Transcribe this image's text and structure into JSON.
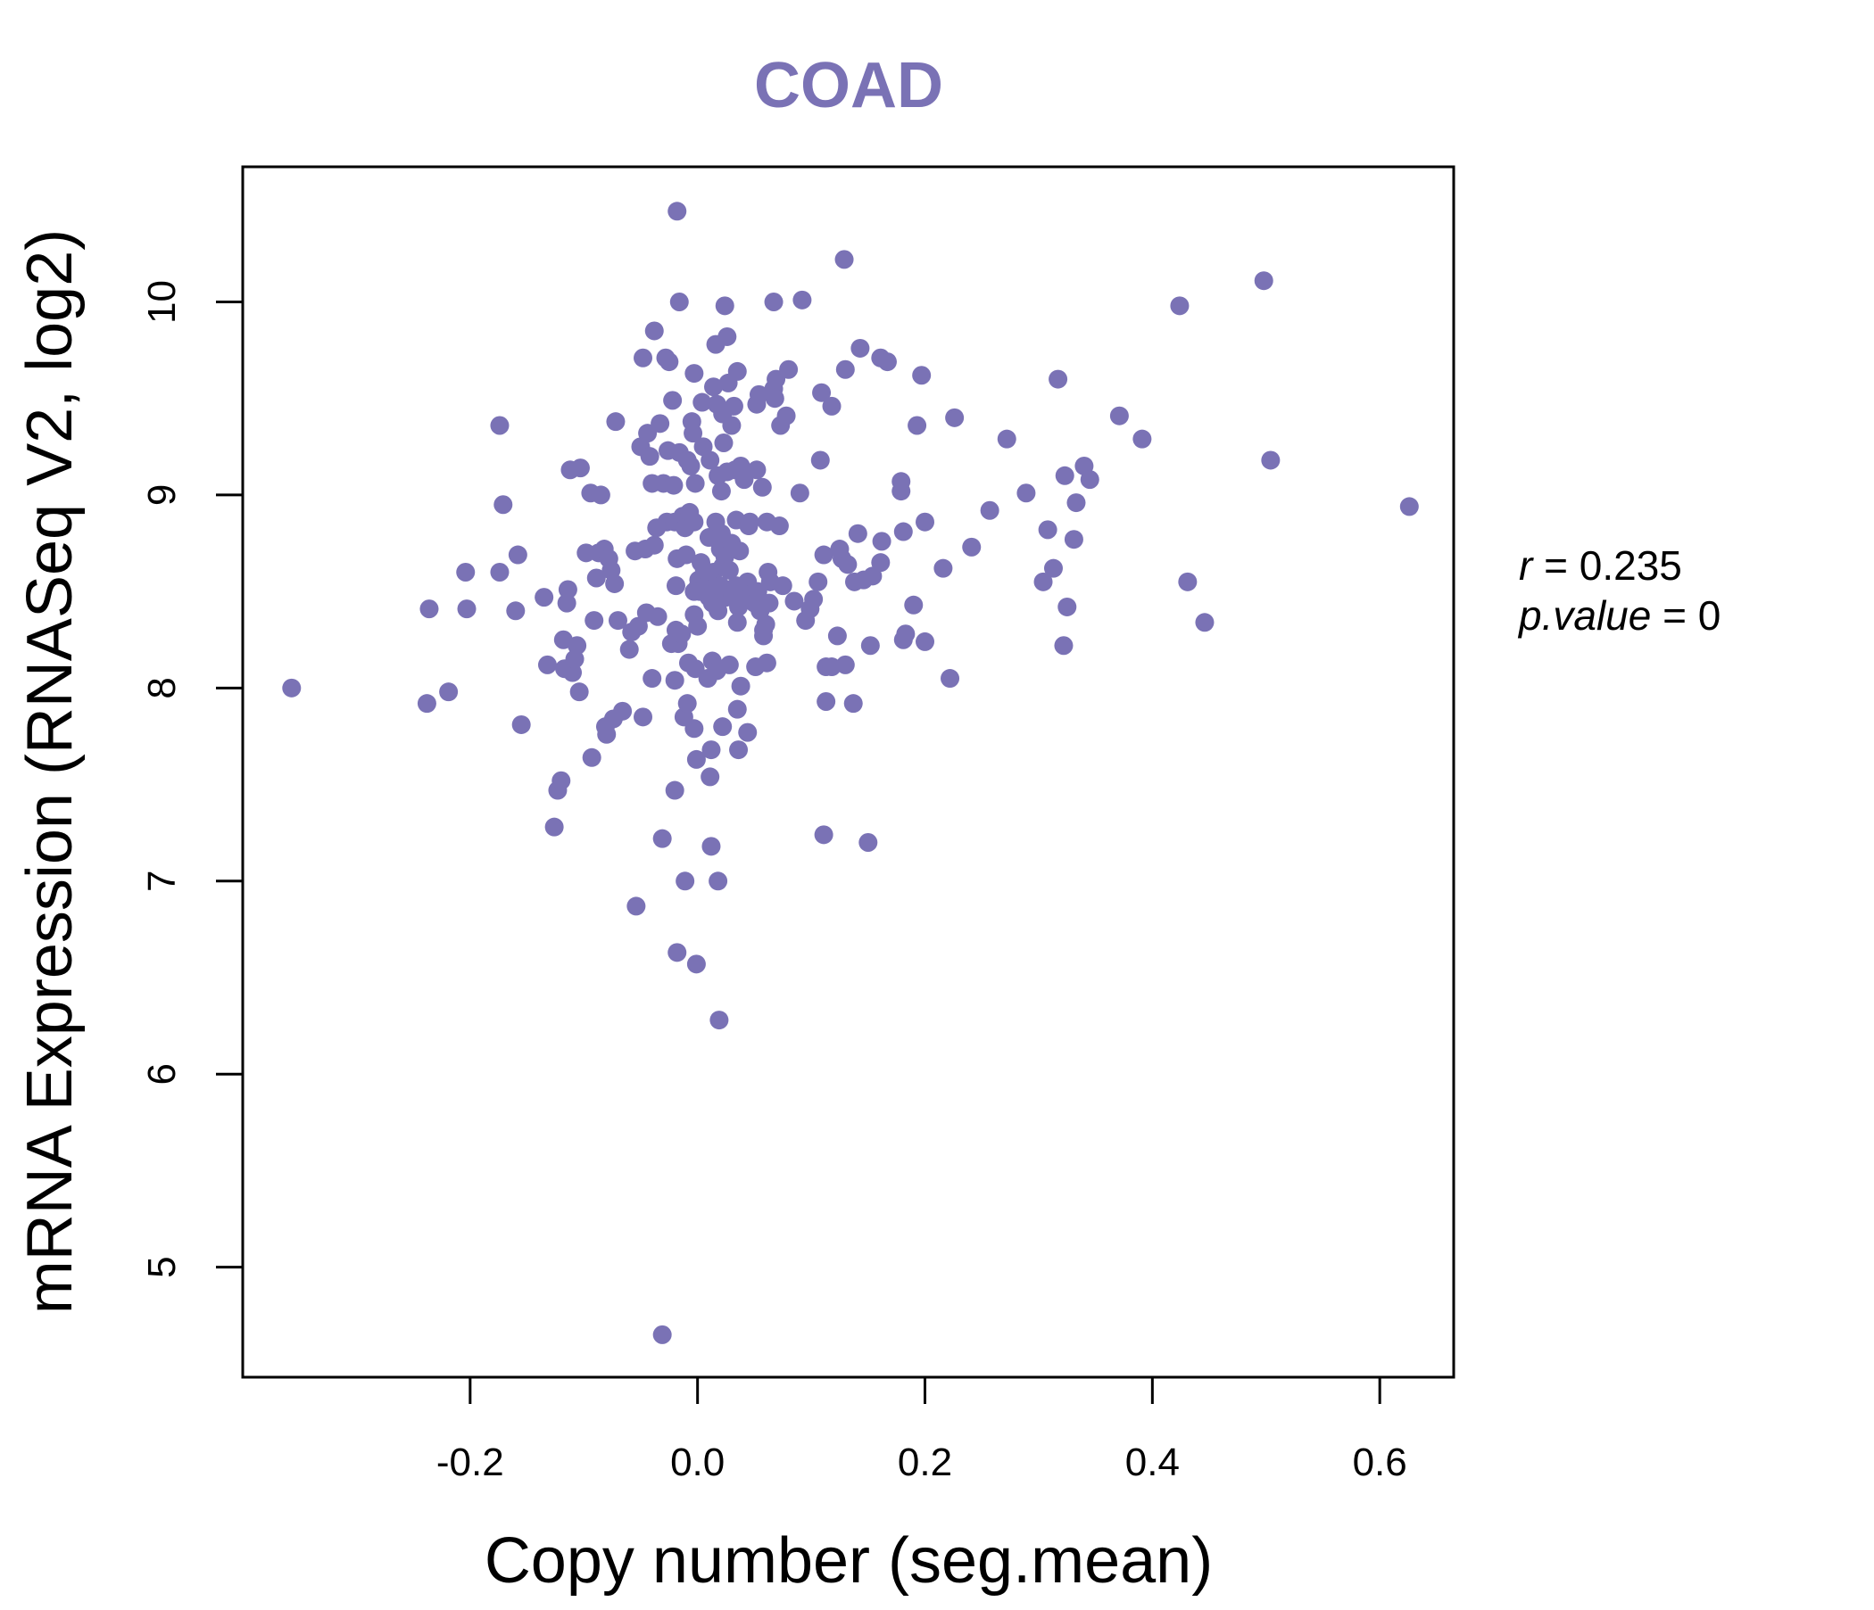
{
  "colors": {
    "point": "#7A72B5",
    "title": "#7A72B5",
    "axis": "#000000"
  },
  "chart_data": {
    "type": "scatter",
    "title": "COAD",
    "xlabel": "Copy number (seg.mean)",
    "ylabel": "mRNA Expression (RNASeq V2, log2)",
    "xlim": [
      -0.4,
      0.665
    ],
    "ylim": [
      4.43,
      10.7
    ],
    "x_ticks": [
      -0.2,
      0.0,
      0.2,
      0.4,
      0.6
    ],
    "x_tick_labels": [
      "-0.2",
      "0.0",
      "0.2",
      "0.4",
      "0.6"
    ],
    "y_ticks": [
      5,
      6,
      7,
      8,
      9,
      10
    ],
    "y_tick_labels": [
      "5",
      "6",
      "7",
      "8",
      "9",
      "10"
    ],
    "annotation": {
      "r_label": "r",
      "r_eq": " = ",
      "r_value": "0.235",
      "p_label": "p.value",
      "p_eq": " = ",
      "p_value": "0"
    },
    "points": [
      [
        -0.357,
        8.0
      ],
      [
        -0.238,
        7.92
      ],
      [
        -0.236,
        8.41
      ],
      [
        -0.219,
        7.98
      ],
      [
        -0.204,
        8.6
      ],
      [
        -0.203,
        8.41
      ],
      [
        -0.174,
        8.6
      ],
      [
        -0.174,
        9.36
      ],
      [
        -0.171,
        8.95
      ],
      [
        -0.16,
        8.4
      ],
      [
        -0.158,
        8.69
      ],
      [
        -0.155,
        7.81
      ],
      [
        -0.135,
        8.47
      ],
      [
        -0.132,
        8.12
      ],
      [
        -0.126,
        7.28
      ],
      [
        -0.123,
        7.47
      ],
      [
        -0.12,
        7.52
      ],
      [
        -0.118,
        8.25
      ],
      [
        -0.117,
        8.1
      ],
      [
        -0.115,
        8.44
      ],
      [
        -0.114,
        8.51
      ],
      [
        -0.112,
        9.13
      ],
      [
        -0.11,
        8.08
      ],
      [
        -0.108,
        8.15
      ],
      [
        -0.106,
        8.22
      ],
      [
        -0.104,
        7.98
      ],
      [
        -0.103,
        9.14
      ],
      [
        -0.098,
        8.7
      ],
      [
        -0.094,
        9.01
      ],
      [
        -0.093,
        7.64
      ],
      [
        -0.091,
        8.35
      ],
      [
        -0.089,
        8.57
      ],
      [
        -0.087,
        8.7
      ],
      [
        -0.085,
        9.0
      ],
      [
        -0.082,
        8.72
      ],
      [
        -0.081,
        7.8
      ],
      [
        -0.08,
        7.76
      ],
      [
        -0.078,
        8.67
      ],
      [
        -0.076,
        8.61
      ],
      [
        -0.074,
        7.84
      ],
      [
        -0.073,
        8.54
      ],
      [
        -0.072,
        9.38
      ],
      [
        -0.07,
        8.35
      ],
      [
        -0.066,
        7.88
      ],
      [
        -0.06,
        8.2
      ],
      [
        -0.058,
        8.29
      ],
      [
        -0.055,
        8.71
      ],
      [
        -0.054,
        6.87
      ],
      [
        -0.052,
        8.32
      ],
      [
        -0.05,
        9.25
      ],
      [
        -0.048,
        7.85
      ],
      [
        -0.048,
        9.71
      ],
      [
        -0.046,
        8.72
      ],
      [
        -0.045,
        8.39
      ],
      [
        -0.044,
        9.32
      ],
      [
        -0.042,
        9.2
      ],
      [
        -0.04,
        8.05
      ],
      [
        -0.04,
        9.06
      ],
      [
        -0.038,
        9.85
      ],
      [
        -0.038,
        8.74
      ],
      [
        -0.036,
        8.83
      ],
      [
        -0.035,
        8.37
      ],
      [
        -0.033,
        9.37
      ],
      [
        -0.031,
        7.22
      ],
      [
        -0.031,
        4.65
      ],
      [
        -0.03,
        9.06
      ],
      [
        -0.028,
        9.71
      ],
      [
        -0.027,
        8.86
      ],
      [
        -0.026,
        9.23
      ],
      [
        -0.025,
        9.69
      ],
      [
        -0.023,
        8.23
      ],
      [
        -0.022,
        9.49
      ],
      [
        -0.021,
        9.05
      ],
      [
        -0.02,
        8.86
      ],
      [
        -0.02,
        8.04
      ],
      [
        -0.02,
        7.47
      ],
      [
        -0.019,
        8.3
      ],
      [
        -0.019,
        8.53
      ],
      [
        -0.018,
        10.47
      ],
      [
        -0.018,
        8.67
      ],
      [
        -0.018,
        6.63
      ],
      [
        -0.017,
        8.23
      ],
      [
        -0.016,
        10.0
      ],
      [
        -0.016,
        9.22
      ],
      [
        -0.014,
        8.28
      ],
      [
        -0.013,
        8.89
      ],
      [
        -0.012,
        7.85
      ],
      [
        -0.011,
        8.83
      ],
      [
        -0.011,
        7.0
      ],
      [
        -0.01,
        8.69
      ],
      [
        -0.009,
        9.18
      ],
      [
        -0.009,
        7.92
      ],
      [
        -0.008,
        8.13
      ],
      [
        -0.007,
        8.91
      ],
      [
        -0.006,
        9.15
      ],
      [
        -0.005,
        9.38
      ],
      [
        -0.004,
        9.32
      ],
      [
        -0.003,
        9.63
      ],
      [
        -0.003,
        8.86
      ],
      [
        -0.003,
        7.79
      ],
      [
        -0.003,
        8.38
      ],
      [
        -0.003,
        8.5
      ],
      [
        -0.002,
        9.06
      ],
      [
        -0.002,
        8.1
      ],
      [
        -0.001,
        6.57
      ],
      [
        -0.001,
        7.63
      ],
      [
        0.0,
        8.52
      ],
      [
        0.0,
        8.32
      ],
      [
        0.001,
        8.56
      ],
      [
        0.002,
        8.5
      ],
      [
        0.003,
        8.65
      ],
      [
        0.004,
        9.48
      ],
      [
        0.005,
        9.25
      ],
      [
        0.006,
        8.61
      ],
      [
        0.008,
        8.53
      ],
      [
        0.009,
        8.05
      ],
      [
        0.01,
        8.47
      ],
      [
        0.01,
        8.78
      ],
      [
        0.011,
        9.18
      ],
      [
        0.011,
        7.54
      ],
      [
        0.012,
        7.18
      ],
      [
        0.012,
        7.68
      ],
      [
        0.013,
        8.14
      ],
      [
        0.013,
        8.44
      ],
      [
        0.014,
        9.56
      ],
      [
        0.014,
        8.6
      ],
      [
        0.016,
        9.78
      ],
      [
        0.016,
        8.86
      ],
      [
        0.017,
        9.47
      ],
      [
        0.017,
        8.09
      ],
      [
        0.018,
        9.1
      ],
      [
        0.018,
        7.0
      ],
      [
        0.018,
        8.4
      ],
      [
        0.019,
        6.28
      ],
      [
        0.02,
        8.53
      ],
      [
        0.02,
        8.72
      ],
      [
        0.021,
        9.02
      ],
      [
        0.021,
        8.8
      ],
      [
        0.022,
        9.42
      ],
      [
        0.022,
        8.63
      ],
      [
        0.022,
        7.8
      ],
      [
        0.023,
        9.27
      ],
      [
        0.024,
        8.68
      ],
      [
        0.024,
        9.98
      ],
      [
        0.025,
        8.47
      ],
      [
        0.026,
        9.82
      ],
      [
        0.026,
        9.12
      ],
      [
        0.027,
        9.58
      ],
      [
        0.028,
        8.61
      ],
      [
        0.028,
        8.12
      ],
      [
        0.03,
        9.36
      ],
      [
        0.03,
        8.75
      ],
      [
        0.031,
        8.48
      ],
      [
        0.032,
        9.46
      ],
      [
        0.033,
        9.13
      ],
      [
        0.034,
        8.87
      ],
      [
        0.034,
        8.53
      ],
      [
        0.035,
        9.64
      ],
      [
        0.035,
        7.89
      ],
      [
        0.035,
        8.34
      ],
      [
        0.036,
        8.42
      ],
      [
        0.036,
        7.68
      ],
      [
        0.037,
        8.71
      ],
      [
        0.038,
        9.15
      ],
      [
        0.038,
        8.01
      ],
      [
        0.04,
        8.47
      ],
      [
        0.041,
        9.08
      ],
      [
        0.042,
        8.51
      ],
      [
        0.044,
        8.55
      ],
      [
        0.044,
        7.77
      ],
      [
        0.045,
        8.84
      ],
      [
        0.046,
        8.86
      ],
      [
        0.048,
        8.49
      ],
      [
        0.05,
        8.44
      ],
      [
        0.051,
        8.11
      ],
      [
        0.052,
        9.13
      ],
      [
        0.052,
        9.47
      ],
      [
        0.053,
        8.5
      ],
      [
        0.054,
        9.52
      ],
      [
        0.055,
        8.4
      ],
      [
        0.057,
        9.04
      ],
      [
        0.058,
        8.3
      ],
      [
        0.058,
        8.27
      ],
      [
        0.06,
        8.33
      ],
      [
        0.061,
        8.13
      ],
      [
        0.061,
        8.86
      ],
      [
        0.062,
        8.6
      ],
      [
        0.063,
        8.44
      ],
      [
        0.064,
        8.55
      ],
      [
        0.067,
        9.55
      ],
      [
        0.067,
        10.0
      ],
      [
        0.068,
        9.5
      ],
      [
        0.069,
        9.6
      ],
      [
        0.072,
        8.84
      ],
      [
        0.073,
        9.36
      ],
      [
        0.075,
        8.53
      ],
      [
        0.078,
        9.41
      ],
      [
        0.08,
        9.65
      ],
      [
        0.085,
        8.45
      ],
      [
        0.09,
        9.01
      ],
      [
        0.092,
        10.01
      ],
      [
        0.095,
        8.35
      ],
      [
        0.099,
        8.41
      ],
      [
        0.102,
        8.46
      ],
      [
        0.106,
        8.55
      ],
      [
        0.108,
        9.18
      ],
      [
        0.109,
        9.53
      ],
      [
        0.111,
        8.69
      ],
      [
        0.111,
        7.24
      ],
      [
        0.113,
        8.11
      ],
      [
        0.113,
        7.93
      ],
      [
        0.118,
        9.46
      ],
      [
        0.118,
        8.11
      ],
      [
        0.123,
        8.27
      ],
      [
        0.125,
        8.72
      ],
      [
        0.127,
        8.67
      ],
      [
        0.129,
        10.22
      ],
      [
        0.13,
        8.12
      ],
      [
        0.13,
        9.65
      ],
      [
        0.132,
        8.64
      ],
      [
        0.137,
        7.92
      ],
      [
        0.138,
        8.55
      ],
      [
        0.141,
        8.8
      ],
      [
        0.143,
        9.76
      ],
      [
        0.146,
        8.56
      ],
      [
        0.15,
        7.2
      ],
      [
        0.152,
        8.22
      ],
      [
        0.154,
        8.58
      ],
      [
        0.161,
        9.71
      ],
      [
        0.161,
        8.65
      ],
      [
        0.162,
        8.76
      ],
      [
        0.167,
        9.69
      ],
      [
        0.179,
        9.02
      ],
      [
        0.179,
        9.07
      ],
      [
        0.181,
        8.81
      ],
      [
        0.181,
        8.25
      ],
      [
        0.183,
        8.28
      ],
      [
        0.19,
        8.43
      ],
      [
        0.193,
        9.36
      ],
      [
        0.197,
        9.62
      ],
      [
        0.2,
        8.86
      ],
      [
        0.2,
        8.24
      ],
      [
        0.216,
        8.62
      ],
      [
        0.222,
        8.05
      ],
      [
        0.226,
        9.4
      ],
      [
        0.241,
        8.73
      ],
      [
        0.257,
        8.92
      ],
      [
        0.272,
        9.29
      ],
      [
        0.289,
        9.01
      ],
      [
        0.304,
        8.55
      ],
      [
        0.308,
        8.82
      ],
      [
        0.313,
        8.62
      ],
      [
        0.317,
        9.6
      ],
      [
        0.322,
        8.22
      ],
      [
        0.323,
        9.1
      ],
      [
        0.325,
        8.42
      ],
      [
        0.331,
        8.77
      ],
      [
        0.333,
        8.96
      ],
      [
        0.34,
        9.15
      ],
      [
        0.345,
        9.08
      ],
      [
        0.371,
        9.41
      ],
      [
        0.391,
        9.29
      ],
      [
        0.424,
        9.98
      ],
      [
        0.431,
        8.55
      ],
      [
        0.446,
        8.34
      ],
      [
        0.498,
        10.11
      ],
      [
        0.504,
        9.18
      ],
      [
        0.626,
        8.94
      ]
    ]
  }
}
